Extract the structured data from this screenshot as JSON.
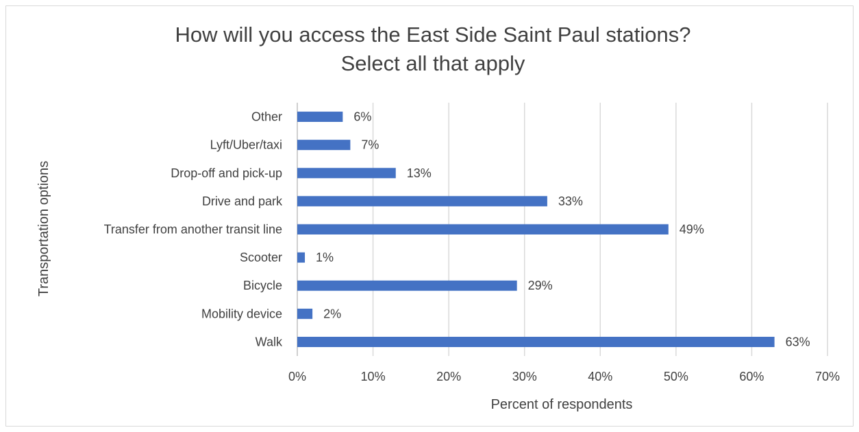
{
  "chart_data": {
    "type": "bar",
    "orientation": "horizontal",
    "title_lines": [
      "How will you access the East Side Saint Paul stations?",
      "Select all that apply"
    ],
    "xlabel": "Percent of respondents",
    "ylabel": "Transportation options",
    "categories": [
      "Other",
      "Lyft/Uber/taxi",
      "Drop-off and pick-up",
      "Drive and park",
      "Transfer from another transit line",
      "Scooter",
      "Bicycle",
      "Mobility device",
      "Walk"
    ],
    "values": [
      6,
      7,
      13,
      33,
      49,
      1,
      29,
      2,
      63
    ],
    "data_labels": [
      "6%",
      "7%",
      "13%",
      "33%",
      "49%",
      "1%",
      "29%",
      "2%",
      "63%"
    ],
    "x_ticks": [
      0,
      10,
      20,
      30,
      40,
      50,
      60,
      70
    ],
    "x_tick_labels": [
      "0%",
      "10%",
      "20%",
      "30%",
      "40%",
      "50%",
      "60%",
      "70%"
    ],
    "xlim": [
      0,
      70
    ],
    "grid": true,
    "legend": "none",
    "bar_color": "#4472C4"
  }
}
